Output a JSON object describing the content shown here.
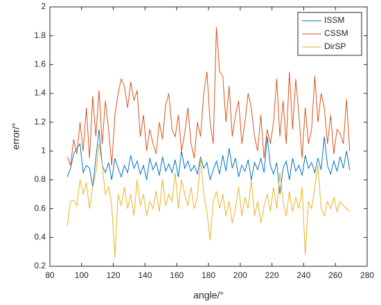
{
  "chart_data": {
    "type": "line",
    "xlabel": "angle/°",
    "ylabel": "error/°",
    "x": [
      91,
      93,
      95,
      97,
      99,
      101,
      103,
      105,
      107,
      109,
      111,
      113,
      115,
      117,
      119,
      121,
      123,
      125,
      127,
      129,
      131,
      133,
      135,
      137,
      139,
      141,
      143,
      145,
      147,
      149,
      151,
      153,
      155,
      157,
      159,
      161,
      163,
      165,
      167,
      169,
      171,
      173,
      175,
      177,
      179,
      181,
      183,
      185,
      187,
      189,
      191,
      193,
      195,
      197,
      199,
      201,
      203,
      205,
      207,
      209,
      211,
      213,
      215,
      217,
      219,
      221,
      223,
      225,
      227,
      229,
      231,
      233,
      235,
      237,
      239,
      241,
      243,
      245,
      247,
      249,
      251,
      253,
      255,
      257,
      259,
      261,
      263,
      265,
      267,
      269
    ],
    "series": [
      {
        "name": "ISSM",
        "color": "#0072BD",
        "values": [
          0.82,
          0.88,
          0.98,
          1.02,
          1.05,
          0.85,
          0.9,
          0.88,
          0.75,
          0.95,
          1.15,
          0.9,
          0.85,
          0.92,
          0.8,
          0.95,
          0.88,
          0.82,
          0.9,
          0.85,
          0.97,
          0.88,
          0.93,
          0.84,
          0.9,
          0.8,
          0.95,
          0.87,
          0.92,
          0.83,
          0.96,
          0.86,
          0.91,
          0.85,
          0.94,
          0.82,
          1.0,
          0.88,
          0.93,
          0.86,
          0.9,
          0.84,
          0.96,
          0.88,
          0.92,
          0.8,
          0.87,
          0.93,
          0.84,
          0.97,
          0.86,
          1.02,
          0.88,
          0.95,
          0.82,
          0.9,
          0.86,
          0.94,
          0.8,
          0.92,
          0.87,
          0.95,
          0.85,
          1.1,
          0.9,
          0.84,
          0.92,
          0.7,
          0.88,
          0.93,
          0.8,
          0.95,
          0.86,
          0.9,
          0.83,
          0.97,
          0.88,
          0.92,
          0.85,
          0.95,
          0.87,
          1.1,
          0.9,
          0.84,
          0.93,
          0.86,
          0.96,
          0.88,
          1.0,
          0.87
        ]
      },
      {
        "name": "CSSM",
        "color": "#D95319",
        "values": [
          0.96,
          0.9,
          1.08,
          0.98,
          1.2,
          1.0,
          1.3,
          0.95,
          1.38,
          1.1,
          1.42,
          1.05,
          1.35,
          1.15,
          0.9,
          1.25,
          1.4,
          1.5,
          1.45,
          1.3,
          1.48,
          1.35,
          1.42,
          1.1,
          1.25,
          1.0,
          1.15,
          1.05,
          0.98,
          1.2,
          1.08,
          1.32,
          1.4,
          1.15,
          1.1,
          1.25,
          1.0,
          1.12,
          1.3,
          1.05,
          0.95,
          1.2,
          1.1,
          1.4,
          1.55,
          1.2,
          1.05,
          1.86,
          1.55,
          1.52,
          1.2,
          1.45,
          1.1,
          1.25,
          1.35,
          1.05,
          1.2,
          1.4,
          1.3,
          1.1,
          1.0,
          1.25,
          0.95,
          1.15,
          1.05,
          1.2,
          1.5,
          1.1,
          1.35,
          1.05,
          1.55,
          1.15,
          1.5,
          1.25,
          0.95,
          1.3,
          1.05,
          1.15,
          1.52,
          1.2,
          1.4,
          1.3,
          1.05,
          1.25,
          0.98,
          1.15,
          1.12,
          1.05,
          1.36,
          1.0
        ]
      },
      {
        "name": "DirSP",
        "color": "#EDB120",
        "values": [
          0.48,
          0.65,
          0.66,
          0.62,
          0.8,
          0.7,
          0.78,
          0.6,
          0.75,
          0.85,
          1.05,
          0.9,
          0.7,
          0.75,
          0.62,
          0.26,
          0.7,
          0.62,
          0.75,
          0.6,
          0.7,
          0.55,
          0.8,
          0.62,
          0.7,
          0.55,
          0.65,
          0.6,
          0.72,
          0.58,
          0.8,
          0.62,
          0.7,
          0.65,
          0.85,
          0.6,
          0.8,
          0.7,
          0.62,
          0.75,
          0.6,
          0.68,
          0.95,
          0.7,
          0.58,
          0.38,
          0.65,
          0.72,
          0.6,
          0.7,
          0.55,
          0.65,
          0.5,
          0.6,
          0.75,
          0.55,
          0.68,
          0.6,
          0.8,
          0.55,
          0.65,
          0.5,
          0.62,
          0.7,
          0.58,
          0.75,
          0.6,
          0.85,
          0.65,
          0.55,
          0.72,
          0.58,
          0.68,
          0.6,
          0.75,
          0.28,
          0.65,
          0.6,
          0.75,
          0.9,
          0.6,
          0.55,
          0.65,
          0.6,
          0.68,
          0.58,
          0.65,
          0.62,
          0.6,
          0.58
        ]
      }
    ],
    "xlim": [
      80,
      280
    ],
    "xticks": [
      80,
      100,
      120,
      140,
      160,
      180,
      200,
      220,
      240,
      260,
      280
    ],
    "ylim": [
      0.2,
      2
    ],
    "yticks": [
      0.2,
      0.4,
      0.6,
      0.8,
      1,
      1.2,
      1.4,
      1.6,
      1.8,
      2
    ],
    "legend": "top-right"
  }
}
